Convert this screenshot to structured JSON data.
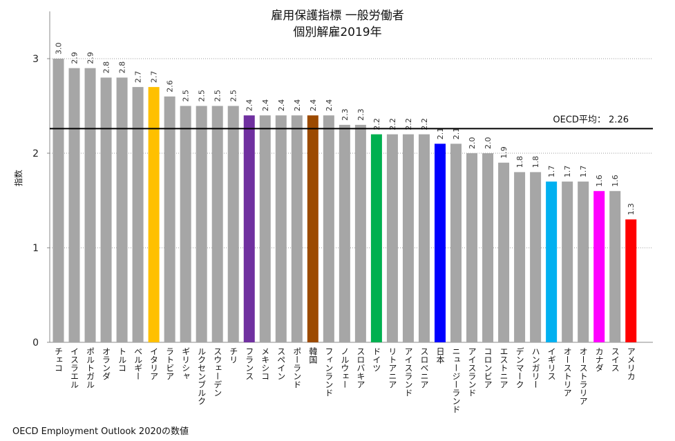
{
  "chart_data": {
    "type": "bar",
    "title": "雇用保護指標 一般労働者",
    "subtitle": "個別解雇2019年",
    "ylabel": "指数",
    "xlabel": "",
    "ylim": [
      0,
      3.5
    ],
    "yticks": [
      0,
      1,
      2,
      3
    ],
    "grid": true,
    "categories": [
      "チェコ",
      "イスラエル",
      "ポルトガル",
      "オランダ",
      "トルコ",
      "ベルギー",
      "イタリア",
      "ラトビア",
      "ギリシャ",
      "ルクセンブルク",
      "スウェーデン",
      "チリ",
      "フランス",
      "メキシコ",
      "スペイン",
      "ポーランド",
      "韓国",
      "フィンランド",
      "ノルウェー",
      "スロバキア",
      "ドイツ",
      "リトアニア",
      "アイスランド",
      "スロベニア",
      "日本",
      "ニュージーランド",
      "アイスランド",
      "コロンビア",
      "エストニア",
      "デンマーク",
      "ハンガリー",
      "イギリス",
      "オーストリア",
      "オーストラリア",
      "カナダ",
      "スイス",
      "アメリカ"
    ],
    "values": [
      3.0,
      2.9,
      2.9,
      2.8,
      2.8,
      2.7,
      2.7,
      2.6,
      2.5,
      2.5,
      2.5,
      2.5,
      2.4,
      2.4,
      2.4,
      2.4,
      2.4,
      2.4,
      2.3,
      2.3,
      2.2,
      2.2,
      2.2,
      2.2,
      2.1,
      2.1,
      2.0,
      2.0,
      1.9,
      1.8,
      1.8,
      1.7,
      1.7,
      1.7,
      1.6,
      1.6,
      1.3
    ],
    "value_labels": [
      "3.0",
      "2.9",
      "2.9",
      "2.8",
      "2.8",
      "2.7",
      "2.7",
      "2.6",
      "2.5",
      "2.5",
      "2.5",
      "2.5",
      "2.4",
      "2.4",
      "2.4",
      "2.4",
      "2.4",
      "2.4",
      "2.3",
      "2.3",
      "2.2",
      "2.2",
      "2.2",
      "2.2",
      "2.1",
      "2.1",
      "2.0",
      "2.0",
      "1.9",
      "1.8",
      "1.8",
      "1.7",
      "1.7",
      "1.7",
      "1.6",
      "1.6",
      "1.3"
    ],
    "colors": [
      "#a6a6a6",
      "#a6a6a6",
      "#a6a6a6",
      "#a6a6a6",
      "#a6a6a6",
      "#a6a6a6",
      "#ffc000",
      "#a6a6a6",
      "#a6a6a6",
      "#a6a6a6",
      "#a6a6a6",
      "#a6a6a6",
      "#7030a0",
      "#a6a6a6",
      "#a6a6a6",
      "#a6a6a6",
      "#9c4a00",
      "#a6a6a6",
      "#a6a6a6",
      "#a6a6a6",
      "#00b050",
      "#a6a6a6",
      "#a6a6a6",
      "#a6a6a6",
      "#0000ff",
      "#a6a6a6",
      "#a6a6a6",
      "#a6a6a6",
      "#a6a6a6",
      "#a6a6a6",
      "#a6a6a6",
      "#00b0f0",
      "#a6a6a6",
      "#a6a6a6",
      "#ff00ff",
      "#a6a6a6",
      "#ff0000"
    ],
    "reference_line": {
      "label": "OECD平均： 2.26",
      "value": 2.26,
      "color": "#000000"
    }
  },
  "source_note": "OECD Employment Outlook 2020の数値"
}
